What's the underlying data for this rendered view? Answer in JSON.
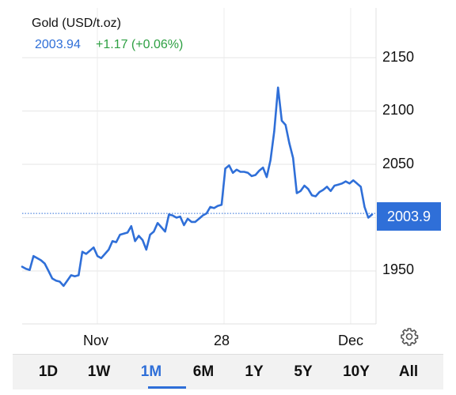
{
  "header": {
    "title": "Gold (USD/t.oz)",
    "price": "2003.94",
    "change": "+1.17 (+0.06%)"
  },
  "current_price_tag": "2003.9",
  "colors": {
    "line": "#2f6fd8",
    "positive": "#2ea043",
    "accent": "#2f6fd8"
  },
  "chart_data": {
    "type": "line",
    "x_labels": [
      "Nov",
      "28",
      "Dec"
    ],
    "y_ticks": [
      1950,
      2050,
      2100,
      2150
    ],
    "ylim": [
      1925,
      2165
    ],
    "last_value": 2003.94,
    "reference_line": 2003.94,
    "grid": true,
    "series": [
      {
        "values": [
          1954,
          1952,
          1951,
          1964,
          1962,
          1960,
          1957,
          1950,
          1943,
          1941,
          1940,
          1936,
          1941,
          1946,
          1945,
          1946,
          1968,
          1966,
          1969,
          1972,
          1964,
          1962,
          1966,
          1970,
          1978,
          1977,
          1984,
          1985,
          1986,
          1992,
          1978,
          1983,
          1979,
          1970,
          1984,
          1987,
          1995,
          1991,
          1987,
          2003,
          2002,
          2000,
          2001,
          1993,
          1999,
          1996,
          1996,
          1999,
          2002,
          2004,
          2010,
          2009,
          2011,
          2012,
          2046,
          2049,
          2042,
          2045,
          2043,
          2043,
          2042,
          2039,
          2040,
          2044,
          2047,
          2038,
          2054,
          2081,
          2122,
          2091,
          2087,
          2070,
          2056,
          2023,
          2025,
          2030,
          2027,
          2021,
          2020,
          2024,
          2026,
          2029,
          2025,
          2030,
          2031,
          2032,
          2034,
          2032,
          2035,
          2032,
          2029,
          2010,
          2000,
          2003
        ]
      }
    ]
  },
  "settings_icon": "gear-icon",
  "tabs": [
    {
      "label": "1D"
    },
    {
      "label": "1W"
    },
    {
      "label": "1M"
    },
    {
      "label": "6M"
    },
    {
      "label": "1Y"
    },
    {
      "label": "5Y"
    },
    {
      "label": "10Y"
    },
    {
      "label": "All"
    }
  ],
  "active_tab": "1M"
}
